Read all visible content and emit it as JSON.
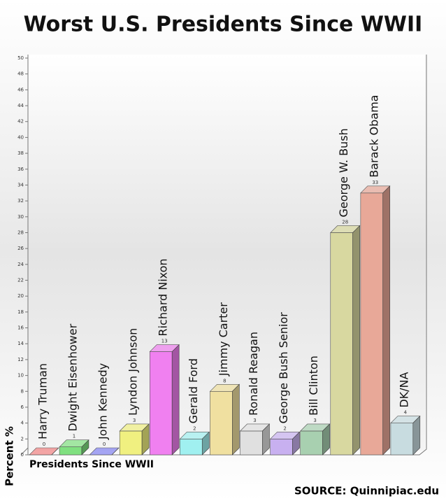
{
  "chart_data": {
    "type": "bar3d",
    "title": "Worst U.S. Presidents Since WWII",
    "y_label": "Percent %",
    "x_label": "Presidents Since WWII",
    "source": "SOURCE: Quinnipiac.edu",
    "categories": [
      "Harry Truman",
      "Dwight Eisenhower",
      "John Kennedy",
      "Lyndon Johnson",
      "Richard Nixon",
      "Gerald Ford",
      "Jimmy Carter",
      "Ronald Reagan",
      "George Bush Senior",
      "Bill Clinton",
      "George W. Bush",
      "Barack Obama",
      "DK/NA"
    ],
    "values": [
      0,
      1,
      0,
      3,
      13,
      2,
      8,
      3,
      2,
      3,
      28,
      33,
      4
    ],
    "colors": [
      "#f08080",
      "#80e080",
      "#8080f0",
      "#f0f080",
      "#f080f0",
      "#a0f0f0",
      "#f0e0a0",
      "#e0e0e0",
      "#c8b0f0",
      "#a8d0b0",
      "#d8d8a0",
      "#e8a898",
      "#c8dce0"
    ],
    "ylim": [
      0,
      50
    ],
    "yticks": [
      0,
      2,
      4,
      6,
      8,
      10,
      12,
      14,
      16,
      18,
      20,
      22,
      24,
      26,
      28,
      30,
      32,
      34,
      36,
      38,
      40,
      42,
      44,
      46,
      48,
      50
    ],
    "grid": false
  }
}
